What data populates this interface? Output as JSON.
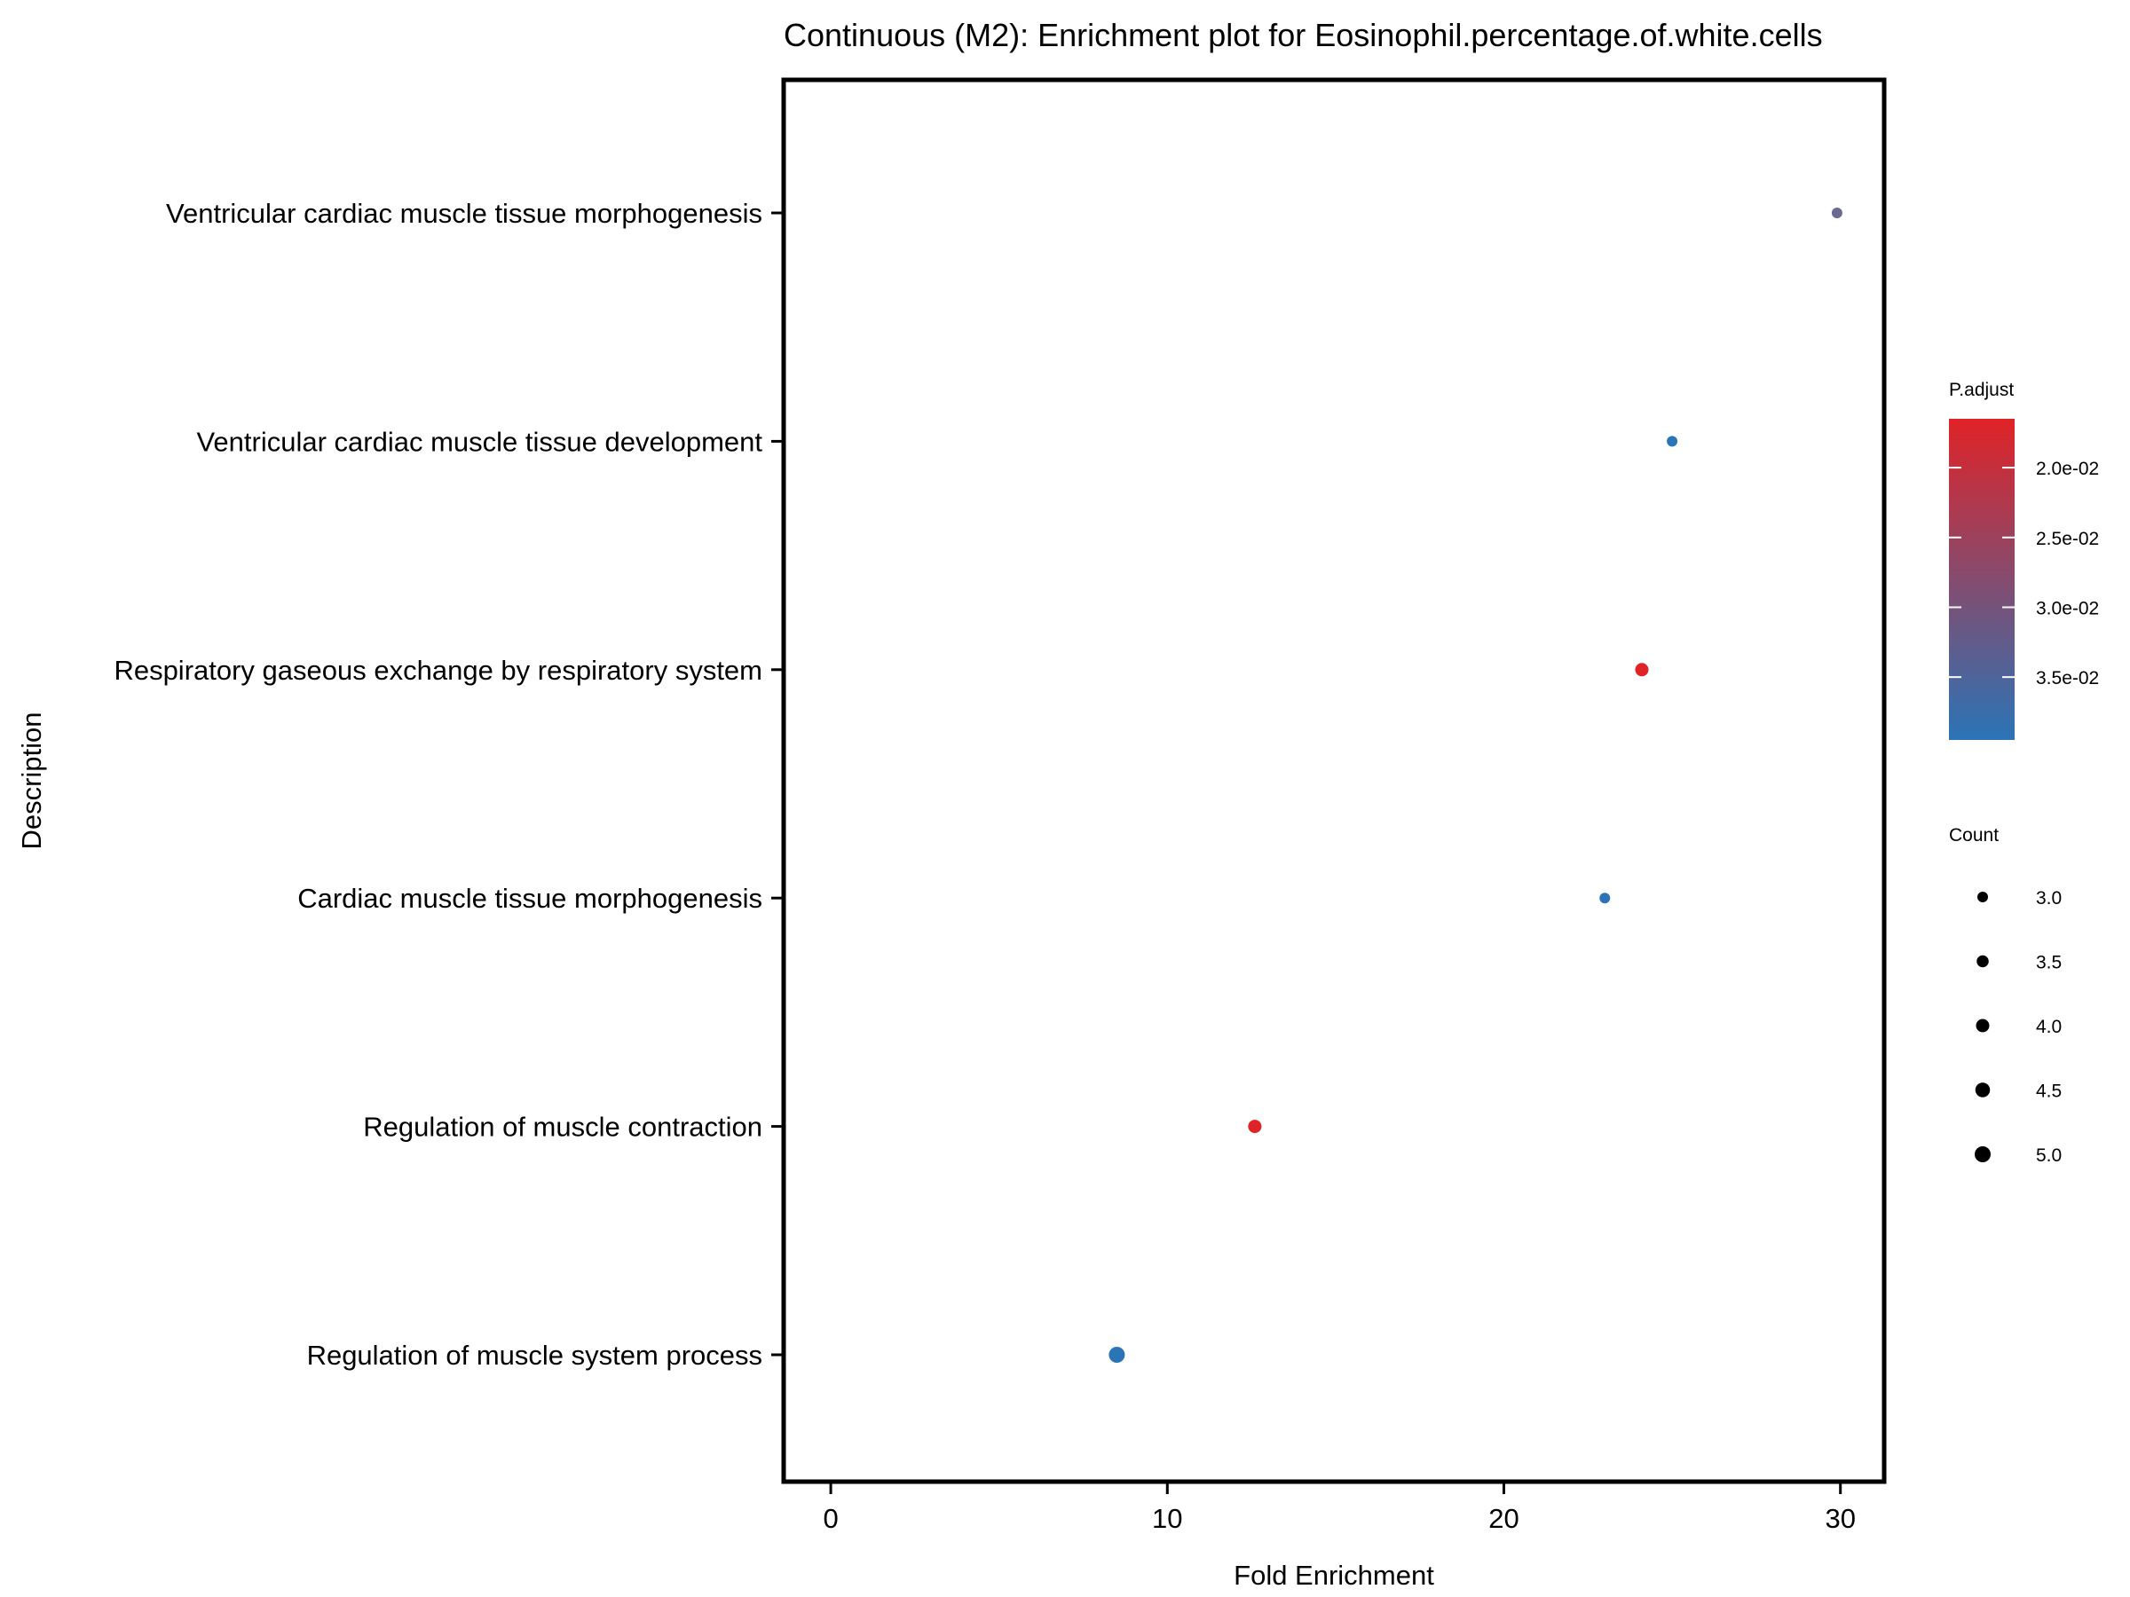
{
  "chart_data": {
    "type": "scatter",
    "title": "Continuous (M2): Enrichment plot for Eosinophil.percentage.of.white.cells",
    "xlabel": "Fold Enrichment",
    "ylabel": "Description",
    "xlim": [
      -1.4,
      31.3
    ],
    "xticks": [
      "0",
      "10",
      "20",
      "30"
    ],
    "xtick_values": [
      0,
      10,
      20,
      30
    ],
    "grid": false,
    "categories": [
      "Ventricular cardiac muscle tissue morphogenesis",
      "Ventricular cardiac muscle tissue development",
      "Respiratory gaseous exchange by respiratory system",
      "Cardiac muscle tissue morphogenesis",
      "Regulation of muscle contraction",
      "Regulation of muscle system process"
    ],
    "points": [
      {
        "description": "Ventricular cardiac muscle tissue morphogenesis",
        "fold_enrichment": 29.9,
        "count": 3,
        "p_adjust": 0.0345,
        "color": "#6a6b8e"
      },
      {
        "description": "Ventricular cardiac muscle tissue development",
        "fold_enrichment": 25.0,
        "count": 3,
        "p_adjust": 0.0395,
        "color": "#2b74b6"
      },
      {
        "description": "Respiratory gaseous exchange by respiratory system",
        "fold_enrichment": 24.1,
        "count": 4,
        "p_adjust": 0.0165,
        "color": "#e02327"
      },
      {
        "description": "Cardiac muscle tissue morphogenesis",
        "fold_enrichment": 23.0,
        "count": 3,
        "p_adjust": 0.0395,
        "color": "#2b74b6"
      },
      {
        "description": "Regulation of muscle contraction",
        "fold_enrichment": 12.6,
        "count": 4,
        "p_adjust": 0.0165,
        "color": "#e02327"
      },
      {
        "description": "Regulation of muscle system process",
        "fold_enrichment": 8.5,
        "count": 5,
        "p_adjust": 0.0395,
        "color": "#2b74b6"
      }
    ],
    "legend_color": {
      "title": "P.adjust",
      "ticks": [
        "2.0e-02",
        "2.5e-02",
        "3.0e-02",
        "3.5e-02"
      ],
      "tick_values": [
        0.02,
        0.025,
        0.03,
        0.035
      ],
      "range": [
        0.0165,
        0.0395
      ],
      "low_color": "#e02327",
      "high_color": "#2b74b6"
    },
    "legend_size": {
      "title": "Count",
      "labels": [
        "3.0",
        "3.5",
        "4.0",
        "4.5",
        "5.0"
      ],
      "values": [
        3.0,
        3.5,
        4.0,
        4.5,
        5.0
      ]
    },
    "legend_position": "right"
  }
}
